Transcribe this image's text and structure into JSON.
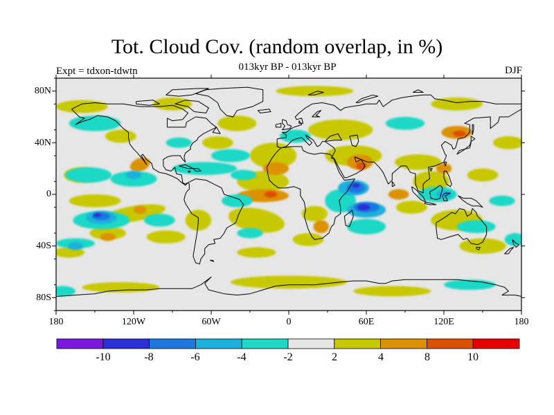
{
  "title": "Tot. Cloud Cov. (random overlap, in %)",
  "subtitle": "013kyr BP - 013kyr BP",
  "experiment_label": "Expt = tdxon-tdwtn",
  "season": "DJF",
  "map": {
    "projection": "cylindrical equidistant",
    "lon_range": [
      -180,
      180
    ],
    "lat_range": [
      -90,
      90
    ],
    "background_color": "#e6e6e6",
    "coastline_color": "#000000",
    "y_ticks": [
      "80N",
      "40N",
      "0",
      "40S",
      "80S"
    ],
    "x_ticks": [
      "180",
      "120W",
      "60W",
      "0",
      "60E",
      "120E",
      "180"
    ]
  },
  "colorbar": {
    "colors": [
      "#7a1adf",
      "#2a30d6",
      "#1e78e0",
      "#1cb0dc",
      "#1ed8c6",
      "#e6e6e6",
      "#c8c800",
      "#dc9100",
      "#dc5000",
      "#e60000"
    ],
    "labels": [
      "-10",
      "-8",
      "-6",
      "-4",
      "-2",
      "2",
      "4",
      "8",
      "10"
    ]
  },
  "chart_data": {
    "type": "heatmap",
    "title": "Tot. Cloud Cov. (random overlap, in %)",
    "subtitle": "013kyr BP - 013kyr BP",
    "season": "DJF",
    "xlim": [
      -180,
      180
    ],
    "ylim": [
      -90,
      90
    ],
    "levels": [
      -10,
      -8,
      -6,
      -4,
      -2,
      2,
      4,
      8,
      10
    ],
    "anomaly_regions": [
      {
        "region": "Indian Ocean west of Australia",
        "lon": 60,
        "lat": -10,
        "value": -8
      },
      {
        "region": "Western Indian Ocean",
        "lon": 50,
        "lat": 5,
        "value": -6
      },
      {
        "region": "South Pacific",
        "lon": -140,
        "lat": -18,
        "value": -6
      },
      {
        "region": "Tropical Atlantic",
        "lon": -15,
        "lat": 0,
        "value": 6
      },
      {
        "region": "Arabia / Iran",
        "lon": 55,
        "lat": 25,
        "value": 6
      },
      {
        "region": "NE Pacific off Mexico",
        "lon": -115,
        "lat": 20,
        "value": 5
      },
      {
        "region": "East Asia",
        "lon": 130,
        "lat": 48,
        "value": 6
      },
      {
        "region": "Southern Africa",
        "lon": 30,
        "lat": -25,
        "value": 5
      },
      {
        "region": "Southern Ocean",
        "lon": 0,
        "lat": -68,
        "value": 3
      }
    ]
  }
}
